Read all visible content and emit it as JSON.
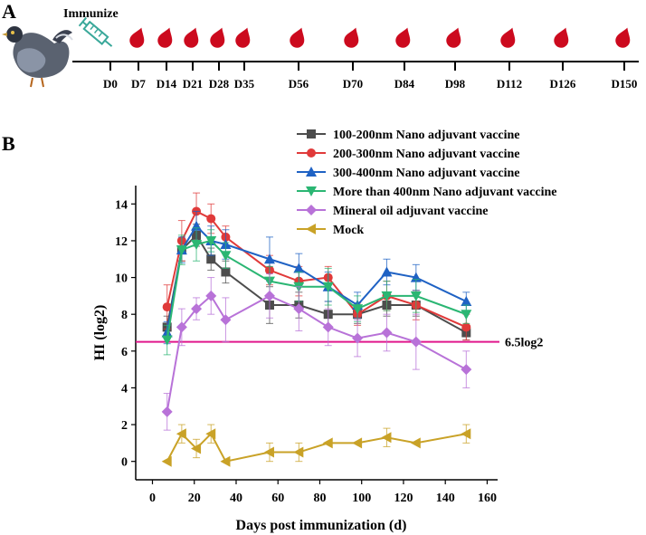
{
  "panel_a": {
    "label": "A",
    "immunize_label": "Immunize",
    "days": [
      "D0",
      "D7",
      "D14",
      "D21",
      "D28",
      "D35",
      "D56",
      "D70",
      "D84",
      "D98",
      "D112",
      "D126",
      "D150"
    ],
    "drop_color": "#cc0a1e",
    "syringe_color": "#3aa89a"
  },
  "panel_b": {
    "label": "B",
    "threshold_label": "6.5log2",
    "threshold_color": "#e0188c"
  },
  "chart_data": {
    "type": "line",
    "title": "",
    "xlabel": "Days post immunization (d)",
    "ylabel": "HI (log2)",
    "xlim": [
      -8,
      165
    ],
    "ylim": [
      -1,
      15
    ],
    "xticks": [
      0,
      20,
      40,
      60,
      80,
      100,
      120,
      140,
      160
    ],
    "yticks": [
      0,
      2,
      4,
      6,
      8,
      10,
      12,
      14
    ],
    "threshold": 6.5,
    "x": [
      7,
      14,
      21,
      28,
      35,
      56,
      70,
      84,
      98,
      112,
      126,
      150
    ],
    "series": [
      {
        "name": "100-200nm Nano adjuvant vaccine",
        "color": "#4d4d4d",
        "marker": "square",
        "values": [
          7.3,
          11.5,
          12.3,
          11.0,
          10.3,
          8.5,
          8.5,
          8.0,
          8.0,
          8.5,
          8.5,
          7.0
        ],
        "errors": [
          0.6,
          0.6,
          0.6,
          0.6,
          0.6,
          1.0,
          0.7,
          0.7,
          0.5,
          0.6,
          0.6,
          0.4
        ]
      },
      {
        "name": "200-300nm Nano adjuvant vaccine",
        "color": "#e03a3a",
        "marker": "circle",
        "values": [
          8.4,
          12.0,
          13.6,
          13.2,
          12.2,
          10.4,
          9.8,
          10.0,
          8.0,
          9.0,
          8.5,
          7.3
        ],
        "errors": [
          1.2,
          1.1,
          1.0,
          0.8,
          0.6,
          0.8,
          0.8,
          0.6,
          0.6,
          0.8,
          0.8,
          0.7
        ]
      },
      {
        "name": "300-400nm Nano adjuvant vaccine",
        "color": "#1f62c4",
        "marker": "triangle-up",
        "values": [
          7.0,
          11.5,
          12.8,
          12.0,
          11.8,
          11.0,
          10.5,
          9.5,
          8.5,
          10.3,
          10.0,
          8.7
        ],
        "errors": [
          0.6,
          0.7,
          0.8,
          0.8,
          0.8,
          1.2,
          0.8,
          0.8,
          0.7,
          0.7,
          0.7,
          0.5
        ]
      },
      {
        "name": "More than 400nm Nano adjuvant vaccine",
        "color": "#2bb673",
        "marker": "triangle-down",
        "values": [
          6.6,
          11.5,
          11.8,
          12.0,
          11.2,
          9.8,
          9.5,
          9.5,
          8.3,
          9.0,
          9.0,
          8.0
        ],
        "errors": [
          0.8,
          0.8,
          0.9,
          0.6,
          0.7,
          0.8,
          0.8,
          1.0,
          0.7,
          0.8,
          0.9,
          0.5
        ]
      },
      {
        "name": "Mineral oil adjuvant vaccine",
        "color": "#b872d8",
        "marker": "diamond",
        "values": [
          2.7,
          7.3,
          8.3,
          9.0,
          7.7,
          9.0,
          8.3,
          7.3,
          6.7,
          7.0,
          6.5,
          5.0
        ],
        "errors": [
          1.0,
          1.0,
          0.6,
          1.0,
          1.2,
          1.2,
          1.2,
          1.0,
          1.0,
          1.0,
          1.5,
          1.0
        ]
      },
      {
        "name": "Mock",
        "color": "#c9a227",
        "marker": "triangle-left",
        "values": [
          0.0,
          1.5,
          0.7,
          1.5,
          0.0,
          0.5,
          0.5,
          1.0,
          1.0,
          1.3,
          1.0,
          1.5
        ],
        "errors": [
          0.0,
          0.5,
          0.5,
          0.5,
          0.0,
          0.5,
          0.5,
          0.0,
          0.0,
          0.5,
          0.0,
          0.5
        ]
      }
    ]
  }
}
